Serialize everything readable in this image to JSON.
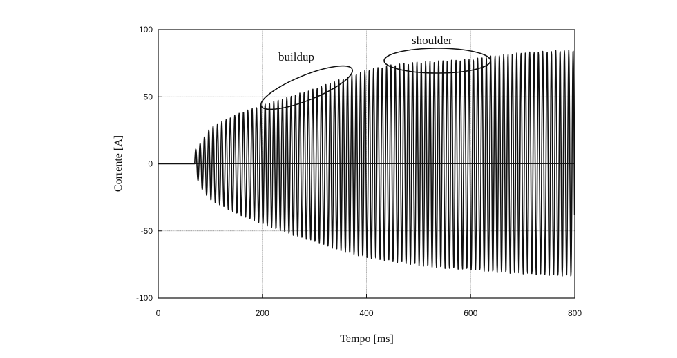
{
  "chart_data": {
    "type": "line",
    "title": "",
    "xlabel": "Tempo [ms]",
    "ylabel": "Corrente [A]",
    "xlim": [
      0,
      800
    ],
    "ylim": [
      -100,
      100
    ],
    "xticks": [
      "0",
      "200",
      "400",
      "600",
      "800"
    ],
    "yticks": [
      "100",
      "50",
      "0",
      "-50",
      "-100"
    ],
    "grid": true,
    "series": [
      {
        "period_ms": 8.33,
        "x": [
          0,
          70,
          80,
          100,
          150,
          200,
          250,
          300,
          350,
          400,
          450,
          500,
          550,
          600,
          650,
          700,
          750,
          800
        ],
        "y_peak": [
          0,
          10,
          15,
          27,
          37,
          44,
          50,
          56,
          63,
          70,
          74,
          76,
          77,
          78,
          81,
          83,
          84,
          85
        ],
        "y_trough": [
          0,
          -5,
          -17,
          -27,
          -37,
          -45,
          -52,
          -58,
          -65,
          -70,
          -73,
          -76,
          -78,
          -79,
          -81,
          -82,
          -83,
          -84
        ]
      }
    ],
    "annotations": [
      {
        "text": "buildup",
        "x": 290,
        "y": 80
      },
      {
        "text": "shoulder",
        "x": 540,
        "y": 92
      }
    ]
  }
}
